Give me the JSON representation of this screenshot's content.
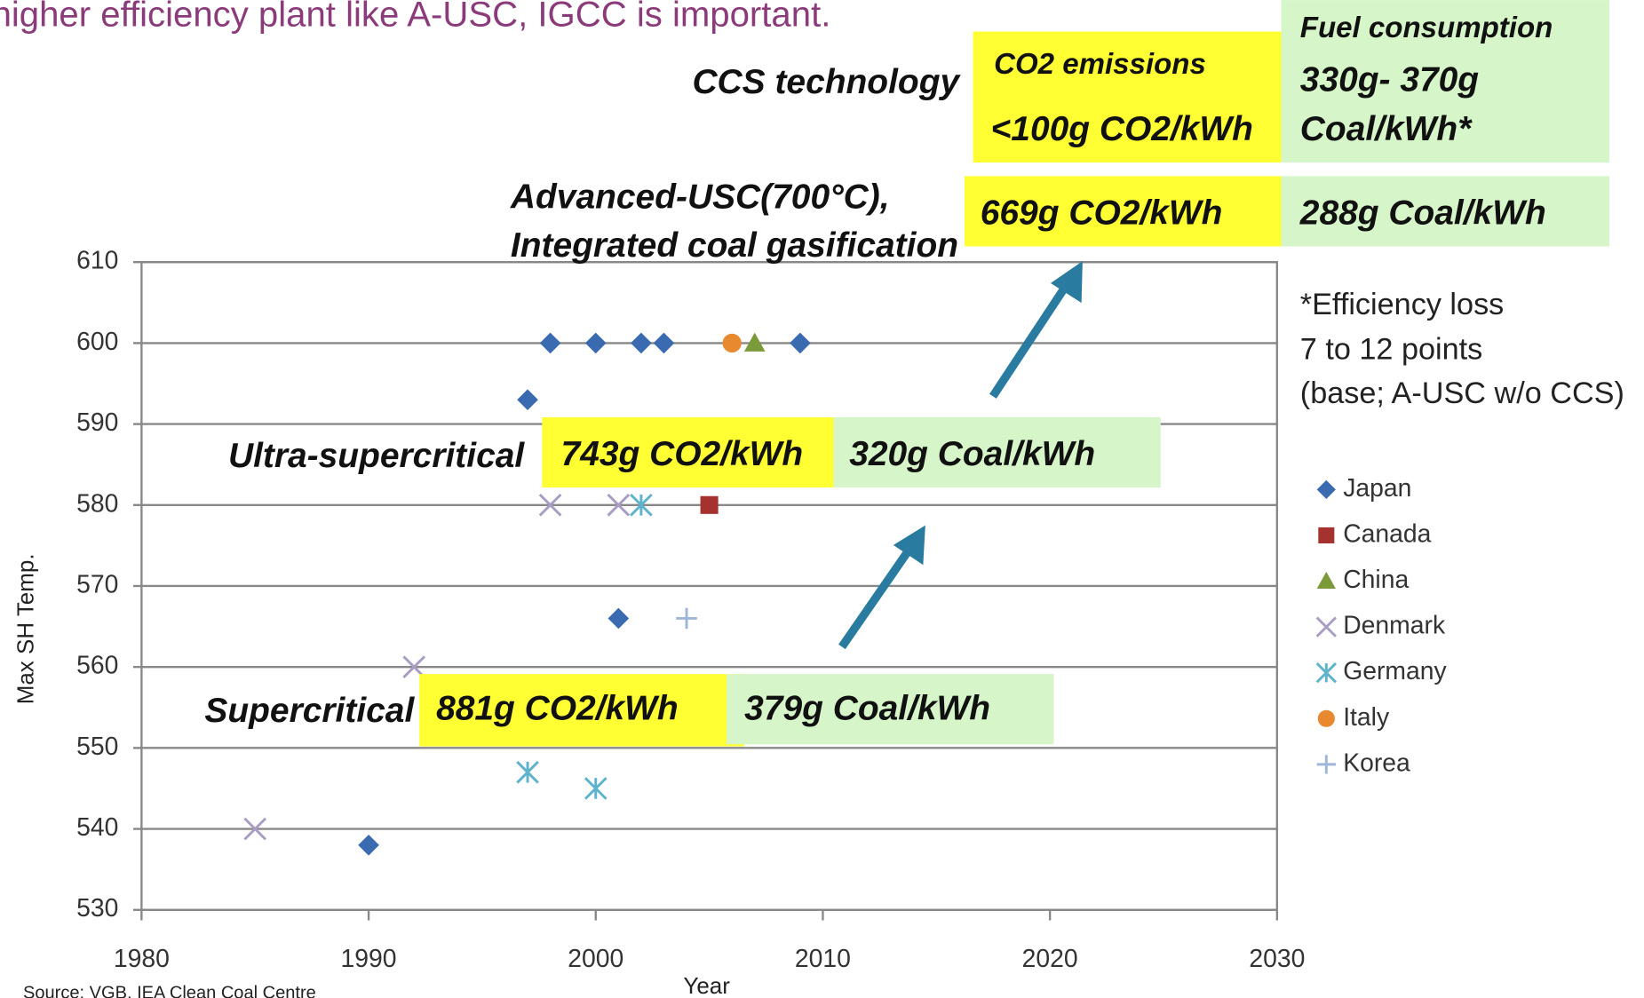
{
  "title": "higher efficiency plant like A-USC, IGCC is important.",
  "source": "Source: VGB, IEA Clean Coal Centre",
  "annotations": [
    {
      "label": [
        "CCS technology"
      ],
      "co2_header": "CO2 emissions",
      "co2": "<100g CO2/kWh",
      "fuel_header": "Fuel consumption",
      "fuel": [
        "330g- 370g",
        "Coal/kWh*"
      ]
    },
    {
      "label": [
        "Advanced-USC(700°C),",
        "Integrated coal gasification"
      ],
      "co2": "669g CO2/kWh",
      "fuel": [
        "288g Coal/kWh"
      ]
    },
    {
      "label": [
        "Ultra-supercritical"
      ],
      "co2": "743g CO2/kWh",
      "fuel": [
        "320g Coal/kWh"
      ]
    },
    {
      "label": [
        "Supercritical"
      ],
      "co2": "881g CO2/kWh",
      "fuel": [
        "379g Coal/kWh"
      ]
    }
  ],
  "footnote": [
    "*Efficiency loss",
    "7 to 12 points",
    "(base; A-USC w/o CCS)"
  ],
  "chart_data": {
    "type": "scatter",
    "x_label": "Year",
    "y_label": "Max SH Temp.",
    "xlim": [
      1980,
      2030
    ],
    "xticks": [
      1980,
      1990,
      2000,
      2010,
      2020,
      2030
    ],
    "ylim": [
      530,
      610
    ],
    "yticks": [
      530,
      540,
      550,
      560,
      570,
      580,
      590,
      600,
      610
    ],
    "grid": true,
    "series": [
      {
        "name": "Japan",
        "color": "#3a6bb0",
        "marker": "diamond",
        "x": [
          1997,
          1998,
          2000,
          2002,
          2003,
          2009,
          2001,
          1990
        ],
        "values": [
          593,
          600,
          600,
          600,
          600,
          600,
          566,
          538
        ]
      },
      {
        "name": "Canada",
        "color": "#a5322e",
        "marker": "square",
        "x": [
          2005
        ],
        "values": [
          580
        ]
      },
      {
        "name": "China",
        "color": "#7b9a3a",
        "marker": "triangle",
        "x": [
          2007
        ],
        "values": [
          600
        ]
      },
      {
        "name": "Denmark",
        "color": "#a99dc4",
        "marker": "cross",
        "x": [
          1998,
          2001,
          1992,
          1985
        ],
        "values": [
          580,
          580,
          560,
          540
        ]
      },
      {
        "name": "Germany",
        "color": "#5fb3cc",
        "marker": "asterisk",
        "x": [
          2002,
          1997,
          2000
        ],
        "values": [
          580,
          547,
          545
        ]
      },
      {
        "name": "Italy",
        "color": "#e8892f",
        "marker": "circle",
        "x": [
          2006
        ],
        "values": [
          600
        ]
      },
      {
        "name": "Korea",
        "color": "#9fb6d8",
        "marker": "plus",
        "x": [
          2004
        ],
        "values": [
          566
        ]
      }
    ]
  }
}
